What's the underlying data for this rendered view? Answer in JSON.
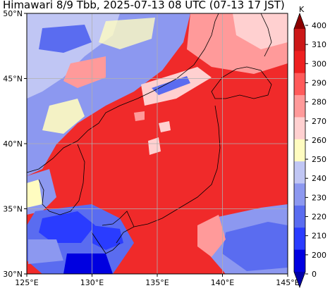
{
  "title": "Himawari 8/9 Tbb, 2025-07-13 08 UTC (07-13 17 JST)",
  "map": {
    "lon_range": [
      125,
      145
    ],
    "lat_range": [
      30,
      50
    ],
    "lon_ticks": [
      {
        "value": 125,
        "label": "125°E"
      },
      {
        "value": 130,
        "label": "130°E"
      },
      {
        "value": 135,
        "label": "135°E"
      },
      {
        "value": 140,
        "label": "140°E"
      },
      {
        "value": 145,
        "label": "145°E"
      }
    ],
    "lat_ticks": [
      {
        "value": 30,
        "label": "30°N"
      },
      {
        "value": 35,
        "label": "35°N"
      },
      {
        "value": 40,
        "label": "40°N"
      },
      {
        "value": 45,
        "label": "45°N"
      },
      {
        "value": 50,
        "label": "50°N"
      }
    ],
    "gridlines": true
  },
  "colorbar": {
    "unit": "K",
    "levels": [
      200,
      210,
      220,
      230,
      240,
      250,
      260,
      270,
      280,
      290,
      300,
      310
    ],
    "labels": [
      "400",
      "310",
      "300",
      "290",
      "280",
      "270",
      "260",
      "250",
      "240",
      "230",
      "220",
      "210",
      "200",
      "0"
    ],
    "colors": [
      "#0000a8",
      "#0000e0",
      "#2a3cff",
      "#5a6cf0",
      "#8c98f0",
      "#c0c6f4",
      "#fffcc0",
      "#ffd0d0",
      "#ff9a9a",
      "#ff5a5a",
      "#ee2020",
      "#cc1818",
      "#8a0000"
    ]
  }
}
